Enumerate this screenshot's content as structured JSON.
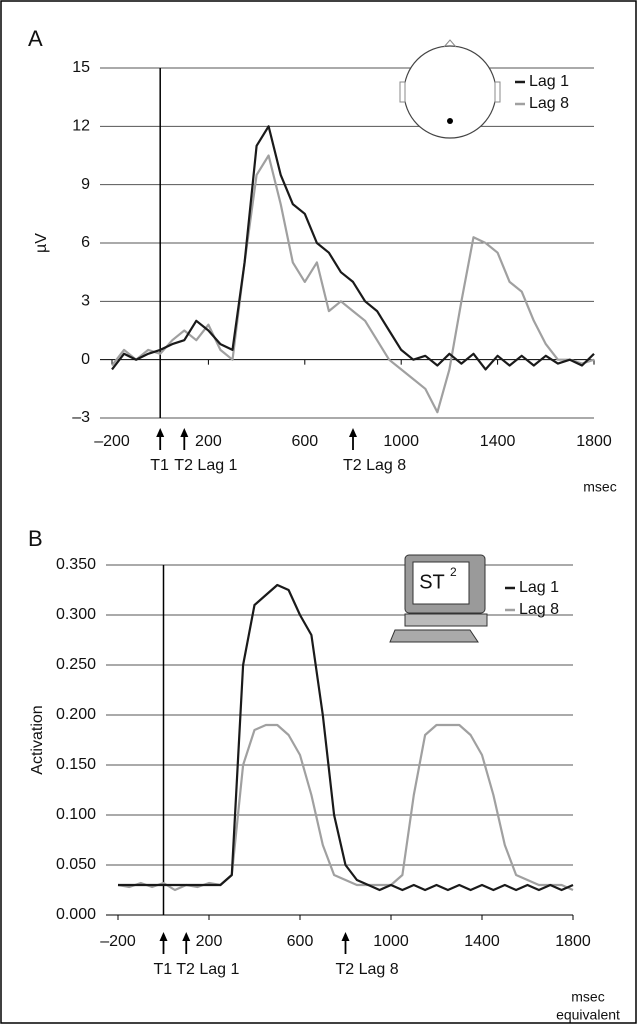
{
  "chart_data": [
    {
      "type": "line",
      "panel_label": "A",
      "y_label": "µV",
      "x_label": [
        "msec"
      ],
      "x": [
        -200,
        -150,
        -100,
        -50,
        0,
        50,
        100,
        150,
        200,
        250,
        300,
        350,
        400,
        450,
        500,
        550,
        600,
        650,
        700,
        750,
        800,
        850,
        900,
        950,
        1000,
        1050,
        1100,
        1150,
        1200,
        1250,
        1300,
        1350,
        1400,
        1450,
        1500,
        1550,
        1600,
        1650,
        1700,
        1750,
        1800
      ],
      "series": [
        {
          "name": "Lag 1",
          "color": "#1a1a1a",
          "values": [
            -0.5,
            0.3,
            0,
            0.3,
            0.5,
            0.8,
            1.0,
            2.0,
            1.5,
            0.8,
            0.5,
            5,
            11,
            12,
            9.5,
            8,
            7.5,
            6,
            5.5,
            4.5,
            4,
            3,
            2.5,
            1.5,
            0.5,
            0,
            0.2,
            -0.3,
            0.3,
            -0.2,
            0.3,
            -0.5,
            0.2,
            -0.3,
            0.2,
            -0.3,
            0.2,
            -0.2,
            0,
            -0.3,
            0.3
          ]
        },
        {
          "name": "Lag 8",
          "color": "#a0a0a0",
          "values": [
            -0.3,
            0.5,
            0,
            0.5,
            0.3,
            1,
            1.5,
            1,
            1.8,
            0.5,
            0,
            5,
            9.5,
            10.5,
            8,
            5,
            4,
            5,
            2.5,
            3,
            2.5,
            2,
            1,
            0,
            -0.5,
            -1,
            -1.5,
            -2.7,
            -0.5,
            3,
            6.3,
            6,
            5.5,
            4,
            3.5,
            2,
            0.8,
            0,
            0,
            -0.2,
            0
          ]
        }
      ],
      "xlim": [
        -200,
        1800
      ],
      "xticks": [
        {
          "value": -200,
          "label": "–200"
        },
        200,
        600,
        1000,
        1400,
        1800
      ],
      "ylim": [
        -3,
        15
      ],
      "yticks": [
        {
          "value": -3,
          "label": "–3"
        },
        0,
        3,
        6,
        9,
        12,
        15
      ],
      "grid": true,
      "annotations": [
        {
          "x": 0,
          "label": "T1"
        },
        {
          "x": 100,
          "label": "T2 Lag 1"
        },
        {
          "x": 800,
          "label": "T2 Lag 8"
        }
      ]
    },
    {
      "type": "line",
      "panel_label": "B",
      "y_label": "Activation",
      "x_label": [
        "msec",
        "equivalent"
      ],
      "icon_text": "ST",
      "icon_superscript": "2",
      "x": [
        -200,
        -150,
        -100,
        -50,
        0,
        50,
        100,
        150,
        200,
        250,
        300,
        350,
        400,
        450,
        500,
        550,
        600,
        650,
        700,
        750,
        800,
        850,
        900,
        950,
        1000,
        1050,
        1100,
        1150,
        1200,
        1250,
        1300,
        1350,
        1400,
        1450,
        1500,
        1550,
        1600,
        1650,
        1700,
        1750,
        1800
      ],
      "series": [
        {
          "name": "Lag 1",
          "color": "#1a1a1a",
          "values": [
            0.03,
            0.03,
            0.03,
            0.03,
            0.03,
            0.03,
            0.03,
            0.03,
            0.03,
            0.03,
            0.04,
            0.25,
            0.31,
            0.32,
            0.33,
            0.325,
            0.3,
            0.28,
            0.2,
            0.1,
            0.05,
            0.035,
            0.03,
            0.025,
            0.03,
            0.025,
            0.03,
            0.025,
            0.03,
            0.025,
            0.03,
            0.025,
            0.03,
            0.025,
            0.03,
            0.025,
            0.03,
            0.025,
            0.03,
            0.025,
            0.03
          ]
        },
        {
          "name": "Lag 8",
          "color": "#a0a0a0",
          "values": [
            0.03,
            0.028,
            0.032,
            0.028,
            0.032,
            0.025,
            0.03,
            0.028,
            0.032,
            0.03,
            0.04,
            0.15,
            0.185,
            0.19,
            0.19,
            0.18,
            0.16,
            0.12,
            0.07,
            0.04,
            0.035,
            0.03,
            0.03,
            0.03,
            0.03,
            0.04,
            0.12,
            0.18,
            0.19,
            0.19,
            0.19,
            0.18,
            0.16,
            0.12,
            0.07,
            0.04,
            0.035,
            0.03,
            0.03,
            0.03,
            0.025
          ]
        }
      ],
      "xlim": [
        -200,
        1800
      ],
      "xticks": [
        {
          "value": -200,
          "label": "–200"
        },
        200,
        600,
        1000,
        1400,
        1800
      ],
      "ylim": [
        0,
        0.35
      ],
      "yticks": [
        {
          "value": 0,
          "label": "0.000"
        },
        {
          "value": 0.05,
          "label": "0.050"
        },
        {
          "value": 0.1,
          "label": "0.100"
        },
        {
          "value": 0.15,
          "label": "0.150"
        },
        {
          "value": 0.2,
          "label": "0.200"
        },
        {
          "value": 0.25,
          "label": "0.250"
        },
        {
          "value": 0.3,
          "label": "0.300"
        },
        {
          "value": 0.35,
          "label": "0.350"
        }
      ],
      "grid": true,
      "annotations": [
        {
          "x": 0,
          "label": "T1"
        },
        {
          "x": 100,
          "label": "T2 Lag 1"
        },
        {
          "x": 800,
          "label": "T2 Lag 8"
        }
      ]
    }
  ]
}
